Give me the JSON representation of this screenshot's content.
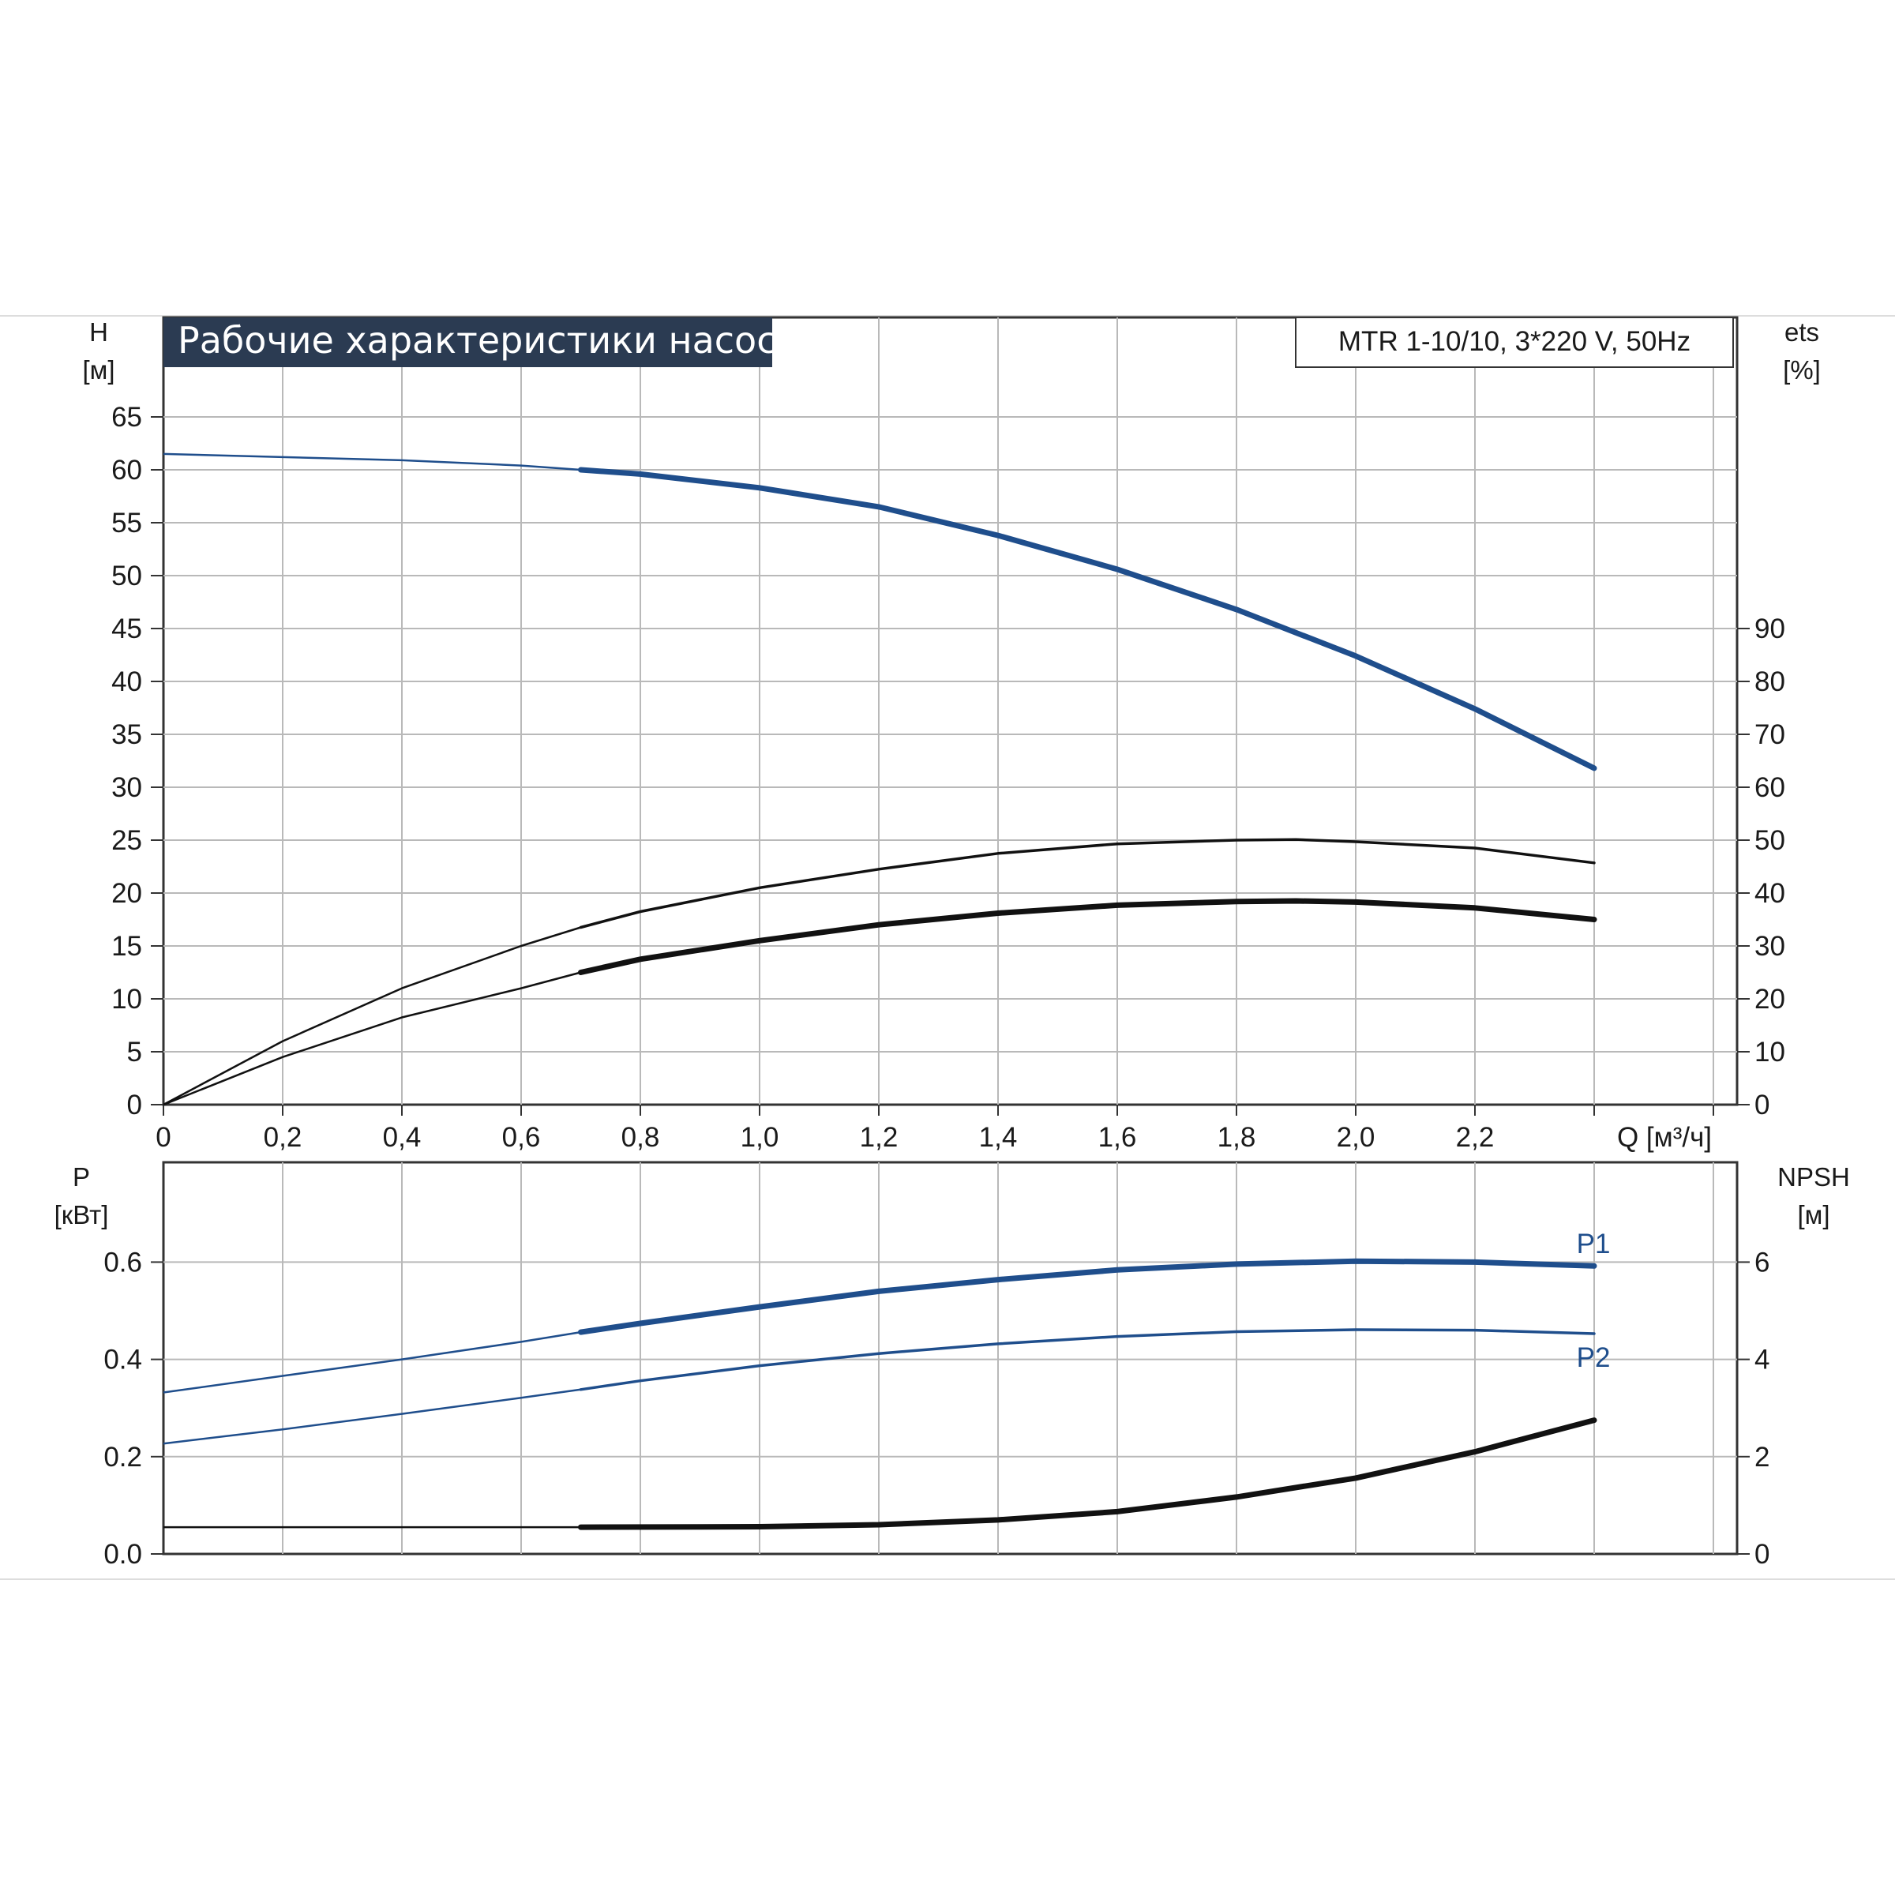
{
  "colors": {
    "blue": "#1f4e8c",
    "black": "#111111",
    "grid": "#b9b9b9",
    "title_bg": "#2b3b52"
  },
  "title": "Рабочие характеристики насоса",
  "model": "MTR 1-10/10, 3*220 V, 50Hz",
  "chart_data": [
    {
      "type": "line",
      "name": "upper",
      "x_axis": {
        "label": "Q [м³/ч]",
        "ticks": [
          "0",
          "0,2",
          "0,4",
          "0,6",
          "0,8",
          "1,0",
          "1,2",
          "1,4",
          "1,6",
          "1,8",
          "2,0",
          "2,2"
        ],
        "range": [
          0,
          2.6
        ]
      },
      "y_left": {
        "label_top": "H",
        "label_unit": "[м]",
        "ticks": [
          0,
          5,
          10,
          15,
          20,
          25,
          30,
          35,
          40,
          45,
          50,
          55,
          60,
          65
        ],
        "range": [
          0,
          70
        ]
      },
      "y_right": {
        "label_top": "ets",
        "label_unit": "[%]",
        "ticks": [
          0,
          10,
          20,
          30,
          40,
          50,
          60,
          70,
          80,
          90
        ],
        "range": [
          0,
          140
        ]
      },
      "grid": true,
      "series": [
        {
          "key": "H",
          "axis": "left",
          "color": "blue",
          "points": [
            [
              0,
              61.5
            ],
            [
              0.2,
              61.2
            ],
            [
              0.4,
              60.9
            ],
            [
              0.6,
              60.4
            ],
            [
              0.7,
              60.0
            ],
            [
              0.8,
              59.6
            ],
            [
              1.0,
              58.3
            ],
            [
              1.2,
              56.5
            ],
            [
              1.4,
              53.8
            ],
            [
              1.6,
              50.6
            ],
            [
              1.8,
              46.8
            ],
            [
              2.0,
              42.4
            ],
            [
              2.2,
              37.4
            ],
            [
              2.4,
              31.8
            ]
          ]
        },
        {
          "key": "eta_total",
          "axis": "right",
          "color": "black",
          "points": [
            [
              0,
              0
            ],
            [
              0.2,
              12.0
            ],
            [
              0.4,
              22.0
            ],
            [
              0.6,
              30.0
            ],
            [
              0.7,
              33.5
            ],
            [
              0.8,
              36.5
            ],
            [
              1.0,
              41.0
            ],
            [
              1.2,
              44.5
            ],
            [
              1.4,
              47.5
            ],
            [
              1.6,
              49.3
            ],
            [
              1.8,
              50.0
            ],
            [
              1.9,
              50.1
            ],
            [
              2.0,
              49.7
            ],
            [
              2.2,
              48.5
            ],
            [
              2.4,
              45.7
            ]
          ]
        },
        {
          "key": "eta_pump",
          "axis": "right",
          "color": "black",
          "points": [
            [
              0,
              0
            ],
            [
              0.2,
              9.0
            ],
            [
              0.4,
              16.5
            ],
            [
              0.6,
              22.0
            ],
            [
              0.7,
              25.0
            ],
            [
              0.8,
              27.5
            ],
            [
              1.0,
              31.0
            ],
            [
              1.2,
              34.0
            ],
            [
              1.4,
              36.2
            ],
            [
              1.6,
              37.7
            ],
            [
              1.8,
              38.4
            ],
            [
              1.9,
              38.5
            ],
            [
              2.0,
              38.3
            ],
            [
              2.2,
              37.2
            ],
            [
              2.4,
              35.0
            ]
          ]
        }
      ]
    },
    {
      "type": "line",
      "name": "lower",
      "x_axis": {
        "range": [
          0,
          2.6
        ]
      },
      "y_left": {
        "label_top": "P",
        "label_unit": "[кВт]",
        "ticks": [
          "0.0",
          "0.2",
          "0.4",
          "0.6"
        ],
        "range": [
          0,
          0.8
        ]
      },
      "y_right": {
        "label_top": "NPSH",
        "label_unit": "[м]",
        "ticks": [
          0,
          2,
          4,
          6
        ],
        "range": [
          0,
          8
        ]
      },
      "grid": true,
      "series": [
        {
          "key": "P1",
          "label": "P1",
          "axis": "left",
          "color": "blue",
          "points": [
            [
              0,
              0.332
            ],
            [
              0.2,
              0.366
            ],
            [
              0.4,
              0.4
            ],
            [
              0.6,
              0.436
            ],
            [
              0.7,
              0.456
            ],
            [
              0.8,
              0.474
            ],
            [
              1.0,
              0.508
            ],
            [
              1.2,
              0.54
            ],
            [
              1.4,
              0.564
            ],
            [
              1.6,
              0.584
            ],
            [
              1.8,
              0.596
            ],
            [
              2.0,
              0.602
            ],
            [
              2.2,
              0.6
            ],
            [
              2.4,
              0.592
            ]
          ]
        },
        {
          "key": "P2",
          "label": "P2",
          "axis": "left",
          "color": "blue",
          "points": [
            [
              0,
              0.227
            ],
            [
              0.2,
              0.256
            ],
            [
              0.4,
              0.288
            ],
            [
              0.6,
              0.321
            ],
            [
              0.7,
              0.338
            ],
            [
              0.8,
              0.356
            ],
            [
              1.0,
              0.387
            ],
            [
              1.2,
              0.412
            ],
            [
              1.4,
              0.432
            ],
            [
              1.6,
              0.447
            ],
            [
              1.8,
              0.457
            ],
            [
              2.0,
              0.461
            ],
            [
              2.2,
              0.46
            ],
            [
              2.4,
              0.453
            ]
          ]
        },
        {
          "key": "NPSH",
          "axis": "right",
          "color": "black",
          "points": [
            [
              0,
              0.55
            ],
            [
              0.4,
              0.55
            ],
            [
              0.7,
              0.55
            ],
            [
              1.0,
              0.56
            ],
            [
              1.2,
              0.6
            ],
            [
              1.4,
              0.7
            ],
            [
              1.6,
              0.87
            ],
            [
              1.8,
              1.17
            ],
            [
              2.0,
              1.56
            ],
            [
              2.2,
              2.1
            ],
            [
              2.4,
              2.75
            ]
          ]
        }
      ]
    }
  ]
}
